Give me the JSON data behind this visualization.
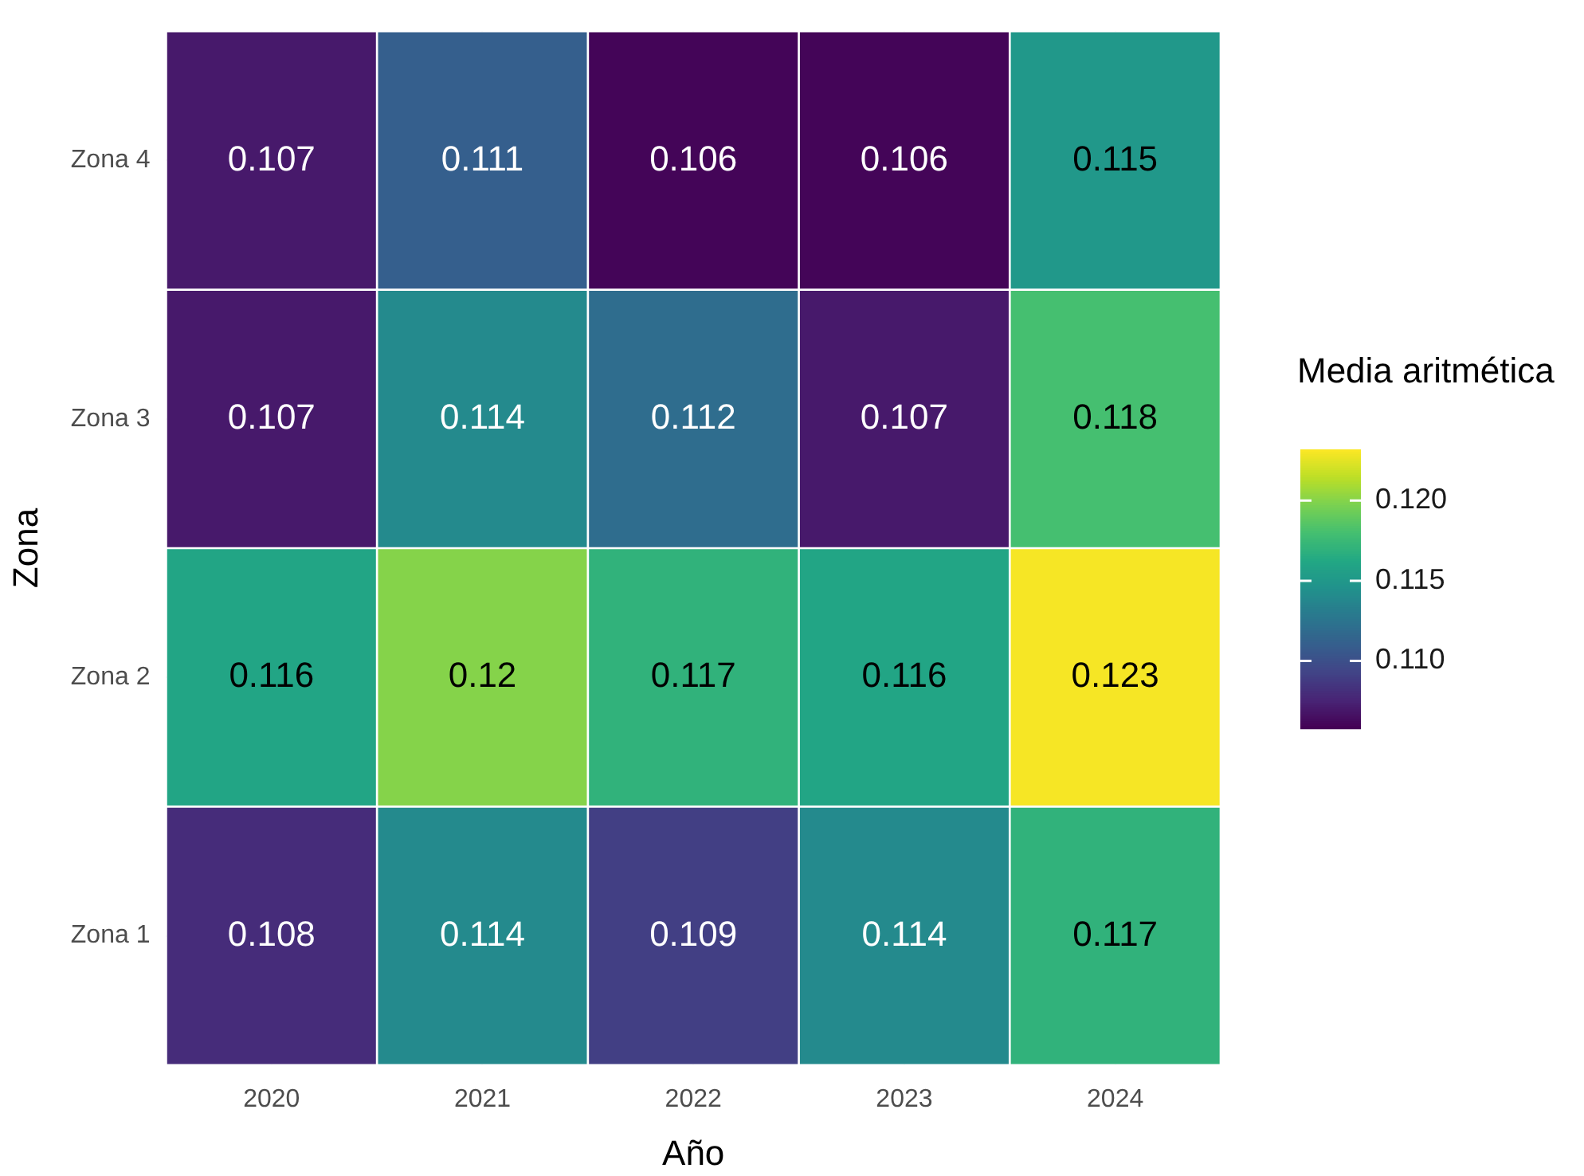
{
  "chart_data": {
    "type": "heatmap",
    "xlabel": "Año",
    "ylabel": "Zona",
    "clabel": "Media aritmética",
    "categories": [
      "2020",
      "2021",
      "2022",
      "2023",
      "2024"
    ],
    "y_categories": [
      "Zona 4",
      "Zona 3",
      "Zona 2",
      "Zona 1"
    ],
    "cells": [
      [
        0.107,
        0.111,
        0.106,
        0.106,
        0.115
      ],
      [
        0.107,
        0.114,
        0.112,
        0.107,
        0.118
      ],
      [
        0.116,
        0.12,
        0.117,
        0.116,
        0.123
      ],
      [
        0.108,
        0.114,
        0.109,
        0.114,
        0.117
      ]
    ],
    "clim": [
      0.1058,
      0.1232
    ],
    "cticks": [
      {
        "value": 0.11,
        "label": "0.110"
      },
      {
        "value": 0.115,
        "label": "0.115"
      },
      {
        "value": 0.12,
        "label": "0.120"
      }
    ],
    "data_labels": true,
    "grid": true
  }
}
